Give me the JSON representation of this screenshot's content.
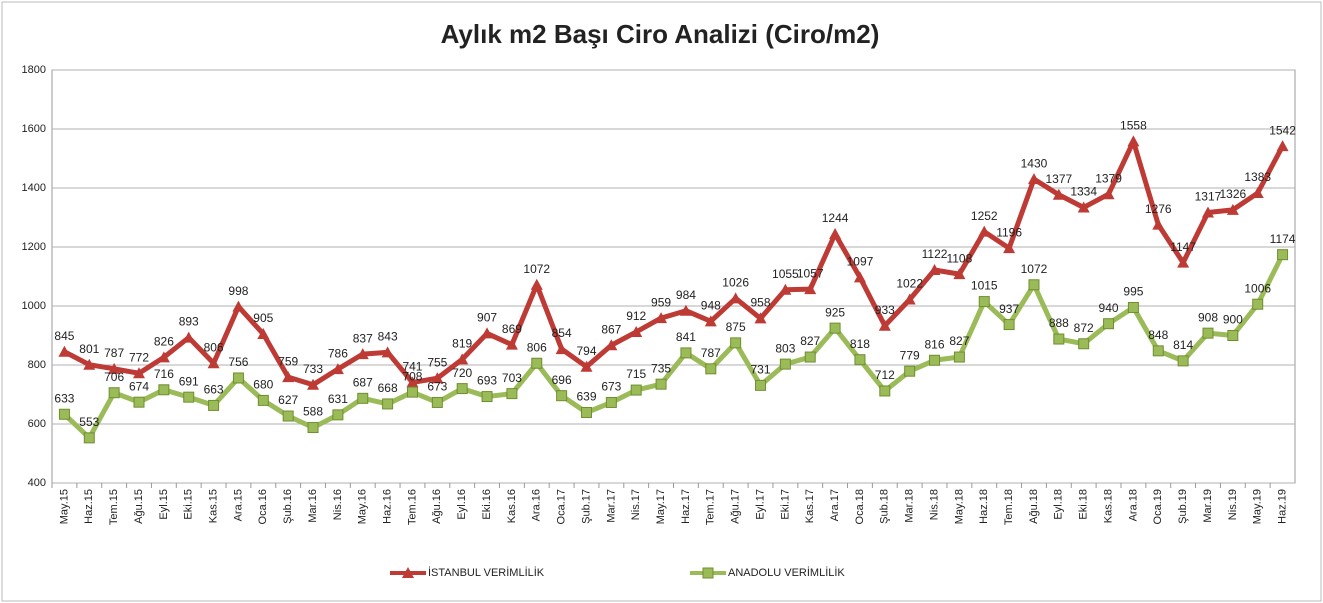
{
  "chart_data": {
    "type": "line",
    "title": "Aylık m2 Başı Ciro Analizi (Ciro/m2)",
    "categories": [
      "May.15",
      "Haz.15",
      "Tem.15",
      "Ağu.15",
      "Eyl.15",
      "Eki.15",
      "Kas.15",
      "Ara.15",
      "Oca.16",
      "Şub.16",
      "Mar.16",
      "Nis.16",
      "May.16",
      "Haz.16",
      "Tem.16",
      "Ağu.16",
      "Eyl.16",
      "Eki.16",
      "Kas.16",
      "Ara.16",
      "Oca.17",
      "Şub.17",
      "Mar.17",
      "Nis.17",
      "May.17",
      "Haz.17",
      "Tem.17",
      "Ağu.17",
      "Eyl.17",
      "Eki.17",
      "Kas.17",
      "Ara.17",
      "Oca.18",
      "Şub.18",
      "Mar.18",
      "Nis.18",
      "May.18",
      "Haz.18",
      "Tem.18",
      "Ağu.18",
      "Eyl.18",
      "Eki.18",
      "Kas.18",
      "Ara.18",
      "Oca.19",
      "Şub.19",
      "Mar.19",
      "Nis.19",
      "May.19",
      "Haz.19"
    ],
    "series": [
      {
        "name": "İSTANBUL VERİMLİLİK",
        "color": "#be3a34",
        "marker": "triangle",
        "values": [
          845,
          801,
          787,
          772,
          826,
          893,
          806,
          998,
          905,
          759,
          733,
          786,
          837,
          843,
          741,
          755,
          819,
          907,
          869,
          1072,
          854,
          794,
          867,
          912,
          959,
          984,
          948,
          1026,
          958,
          1055,
          1057,
          1244,
          1097,
          933,
          1022,
          1122,
          1108,
          1252,
          1196,
          1430,
          1377,
          1334,
          1379,
          1558,
          1276,
          1147,
          1317,
          1326,
          1383,
          1542
        ]
      },
      {
        "name": "ANADOLU VERİMLİLİK",
        "color": "#9bbb59",
        "marker": "square",
        "values": [
          633,
          553,
          706,
          674,
          716,
          691,
          663,
          756,
          680,
          627,
          588,
          631,
          687,
          668,
          708,
          673,
          720,
          693,
          703,
          806,
          696,
          639,
          673,
          715,
          735,
          841,
          787,
          875,
          731,
          803,
          827,
          925,
          818,
          712,
          779,
          816,
          827,
          1015,
          937,
          1072,
          888,
          872,
          940,
          995,
          848,
          814,
          908,
          900,
          1006,
          1174
        ]
      }
    ],
    "ylim": [
      400,
      1800
    ],
    "yticks": [
      400,
      600,
      800,
      1000,
      1200,
      1400,
      1600,
      1800
    ],
    "grid": true
  }
}
